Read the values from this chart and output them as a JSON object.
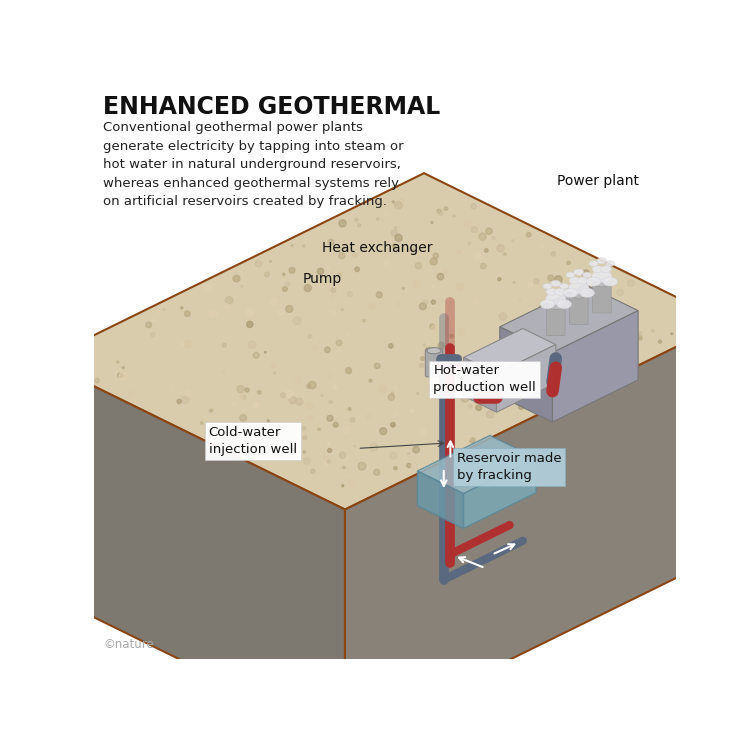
{
  "title": "ENHANCED GEOTHERMAL",
  "subtitle": "Conventional geothermal power plants\ngenerate electricity by tapping into steam or\nhot water in natural underground reservoirs,\nwhereas enhanced geothermal systems rely\non artificial reservoirs created by fracking.",
  "copyright": "©nature",
  "labels": {
    "power_plant": "Power plant",
    "heat_exchanger": "Heat exchanger",
    "pump": "Pump",
    "hot_water": "Hot-water\nproduction well",
    "cold_water": "Cold-water\ninjection well",
    "reservoir": "Reservoir made\nby fracking"
  },
  "colors": {
    "background": "#ffffff",
    "ground_top": "#d8ccac",
    "ground_left": "#7d7870",
    "ground_right": "#898278",
    "ground_edge": "#8B4513",
    "hot_pipe": "#b03030",
    "cold_pipe": "#5a6880",
    "well_ghost": "#a0a8b8",
    "reservoir_top": "#9bbfcc",
    "reservoir_left": "#6a9aaa",
    "reservoir_right": "#7aabb8",
    "hx_top": "#c0c0c8",
    "hx_left": "#a0a0aa",
    "hx_right": "#b0b0b8",
    "pp_top": "#b0b0b8",
    "pp_left": "#888898",
    "pp_right": "#9898a8",
    "pump_color": "#aaaaaa",
    "steam": "#e0e0e8",
    "text_dark": "#111111",
    "text_gray": "#aaaaaa"
  }
}
